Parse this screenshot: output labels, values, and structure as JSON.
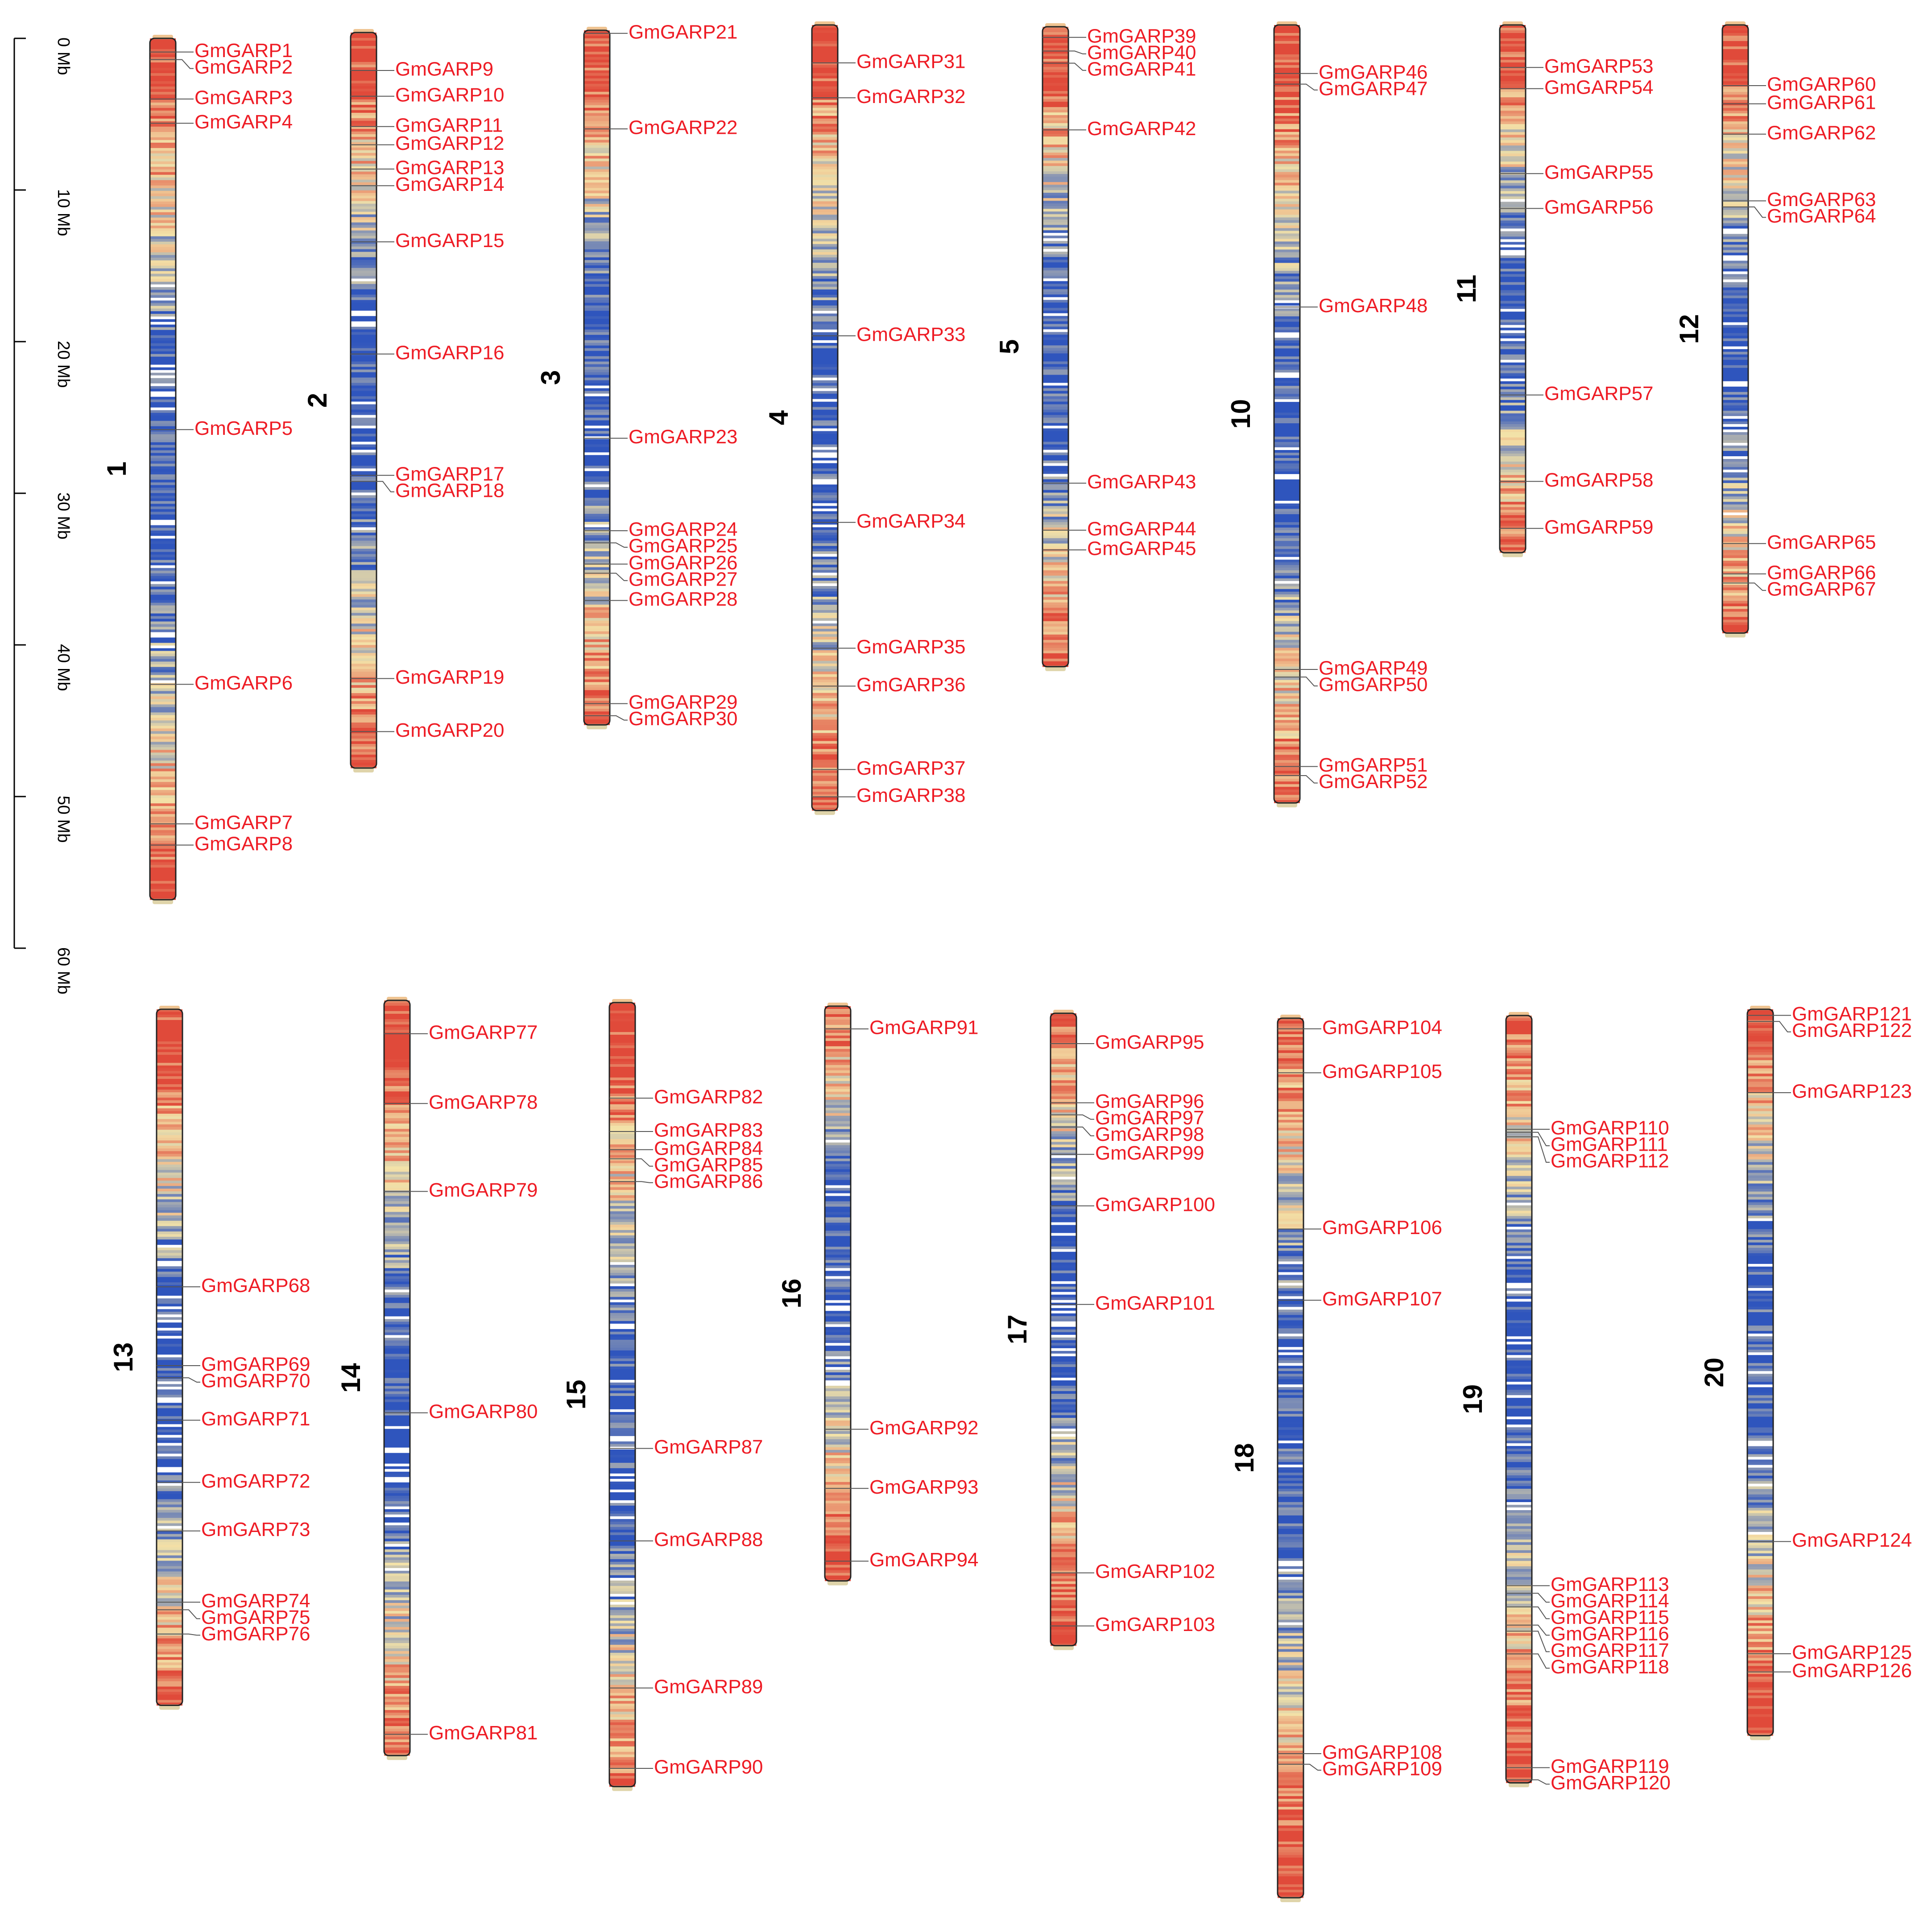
{
  "scale": {
    "unit": "Mb",
    "ticks": [
      "0 Mb",
      "10 Mb",
      "20 Mb",
      "30 Mb",
      "40 Mb",
      "50 Mb",
      "60 Mb"
    ]
  },
  "colors": {
    "gene_label": "#ee1c25",
    "leader": "#555555",
    "chrom_label": "#000000",
    "density_high": "#e04a3a",
    "density_mid": "#f3e2a8",
    "density_low": "#2f55bd"
  },
  "chromosomes": [
    {
      "label": "1",
      "length": 56.8,
      "genes": [
        {
          "name": "GmGARP1",
          "pos": 0.9
        },
        {
          "name": "GmGARP2",
          "pos": 1.4
        },
        {
          "name": "GmGARP3",
          "pos": 4.0
        },
        {
          "name": "GmGARP4",
          "pos": 5.6
        },
        {
          "name": "GmGARP5",
          "pos": 25.8
        },
        {
          "name": "GmGARP6",
          "pos": 42.6
        },
        {
          "name": "GmGARP7",
          "pos": 51.8
        },
        {
          "name": "GmGARP8",
          "pos": 53.2
        }
      ]
    },
    {
      "label": "2",
      "length": 48.5,
      "genes": [
        {
          "name": "GmGARP9",
          "pos": 2.5
        },
        {
          "name": "GmGARP10",
          "pos": 4.2
        },
        {
          "name": "GmGARP11",
          "pos": 6.2
        },
        {
          "name": "GmGARP12",
          "pos": 7.4
        },
        {
          "name": "GmGARP13",
          "pos": 9.0
        },
        {
          "name": "GmGARP14",
          "pos": 10.1
        },
        {
          "name": "GmGARP15",
          "pos": 13.8
        },
        {
          "name": "GmGARP16",
          "pos": 21.2
        },
        {
          "name": "GmGARP17",
          "pos": 29.2
        },
        {
          "name": "GmGARP18",
          "pos": 29.6
        },
        {
          "name": "GmGARP19",
          "pos": 42.6
        },
        {
          "name": "GmGARP20",
          "pos": 46.1
        }
      ]
    },
    {
      "label": "3",
      "length": 45.8,
      "genes": [
        {
          "name": "GmGARP21",
          "pos": 0.2
        },
        {
          "name": "GmGARP22",
          "pos": 6.5
        },
        {
          "name": "GmGARP23",
          "pos": 26.9
        },
        {
          "name": "GmGARP24",
          "pos": 33.0
        },
        {
          "name": "GmGARP25",
          "pos": 33.8
        },
        {
          "name": "GmGARP26",
          "pos": 35.2
        },
        {
          "name": "GmGARP27",
          "pos": 35.8
        },
        {
          "name": "GmGARP28",
          "pos": 37.6
        },
        {
          "name": "GmGARP29",
          "pos": 44.4
        },
        {
          "name": "GmGARP30",
          "pos": 45.2
        }
      ]
    },
    {
      "label": "4",
      "length": 51.8,
      "genes": [
        {
          "name": "GmGARP31",
          "pos": 2.5
        },
        {
          "name": "GmGARP32",
          "pos": 4.8
        },
        {
          "name": "GmGARP33",
          "pos": 20.5
        },
        {
          "name": "GmGARP34",
          "pos": 32.8
        },
        {
          "name": "GmGARP35",
          "pos": 41.1
        },
        {
          "name": "GmGARP36",
          "pos": 43.6
        },
        {
          "name": "GmGARP37",
          "pos": 49.1
        },
        {
          "name": "GmGARP38",
          "pos": 50.9
        }
      ]
    },
    {
      "label": "5",
      "length": 42.2,
      "genes": [
        {
          "name": "GmGARP39",
          "pos": 0.7
        },
        {
          "name": "GmGARP40",
          "pos": 1.6
        },
        {
          "name": "GmGARP41",
          "pos": 2.4
        },
        {
          "name": "GmGARP42",
          "pos": 6.8
        },
        {
          "name": "GmGARP43",
          "pos": 30.1
        },
        {
          "name": "GmGARP44",
          "pos": 33.2
        },
        {
          "name": "GmGARP45",
          "pos": 34.5
        }
      ]
    },
    {
      "label": "10",
      "length": 51.3,
      "genes": [
        {
          "name": "GmGARP46",
          "pos": 3.2
        },
        {
          "name": "GmGARP47",
          "pos": 3.9
        },
        {
          "name": "GmGARP48",
          "pos": 18.6
        },
        {
          "name": "GmGARP49",
          "pos": 42.5
        },
        {
          "name": "GmGARP50",
          "pos": 43.0
        },
        {
          "name": "GmGARP51",
          "pos": 48.9
        },
        {
          "name": "GmGARP52",
          "pos": 49.5
        }
      ]
    },
    {
      "label": "11",
      "length": 34.8,
      "genes": [
        {
          "name": "GmGARP53",
          "pos": 2.8
        },
        {
          "name": "GmGARP54",
          "pos": 4.2
        },
        {
          "name": "GmGARP55",
          "pos": 9.8
        },
        {
          "name": "GmGARP56",
          "pos": 12.1
        },
        {
          "name": "GmGARP57",
          "pos": 24.4
        },
        {
          "name": "GmGARP58",
          "pos": 30.1
        },
        {
          "name": "GmGARP59",
          "pos": 33.2
        }
      ]
    },
    {
      "label": "12",
      "length": 40.1,
      "genes": [
        {
          "name": "GmGARP60",
          "pos": 4.0
        },
        {
          "name": "GmGARP61",
          "pos": 5.2
        },
        {
          "name": "GmGARP62",
          "pos": 7.2
        },
        {
          "name": "GmGARP63",
          "pos": 11.6
        },
        {
          "name": "GmGARP64",
          "pos": 12.0
        },
        {
          "name": "GmGARP65",
          "pos": 34.2
        },
        {
          "name": "GmGARP66",
          "pos": 36.2
        },
        {
          "name": "GmGARP67",
          "pos": 36.8
        }
      ]
    },
    {
      "label": "13",
      "length": 45.9,
      "genes": [
        {
          "name": "GmGARP68",
          "pos": 18.3
        },
        {
          "name": "GmGARP69",
          "pos": 23.5
        },
        {
          "name": "GmGARP70",
          "pos": 24.3
        },
        {
          "name": "GmGARP71",
          "pos": 27.1
        },
        {
          "name": "GmGARP72",
          "pos": 31.2
        },
        {
          "name": "GmGARP73",
          "pos": 34.4
        },
        {
          "name": "GmGARP74",
          "pos": 39.1
        },
        {
          "name": "GmGARP75",
          "pos": 39.6
        },
        {
          "name": "GmGARP76",
          "pos": 41.2
        }
      ]
    },
    {
      "label": "14",
      "length": 49.8,
      "genes": [
        {
          "name": "GmGARP77",
          "pos": 2.2
        },
        {
          "name": "GmGARP78",
          "pos": 6.8
        },
        {
          "name": "GmGARP79",
          "pos": 12.6
        },
        {
          "name": "GmGARP80",
          "pos": 27.2
        },
        {
          "name": "GmGARP81",
          "pos": 48.4
        }
      ]
    },
    {
      "label": "15",
      "length": 51.7,
      "genes": [
        {
          "name": "GmGARP82",
          "pos": 6.3
        },
        {
          "name": "GmGARP83",
          "pos": 8.5
        },
        {
          "name": "GmGARP84",
          "pos": 9.7
        },
        {
          "name": "GmGARP85",
          "pos": 10.3
        },
        {
          "name": "GmGARP86",
          "pos": 11.8
        },
        {
          "name": "GmGARP87",
          "pos": 29.4
        },
        {
          "name": "GmGARP88",
          "pos": 35.5
        },
        {
          "name": "GmGARP89",
          "pos": 45.2
        },
        {
          "name": "GmGARP90",
          "pos": 50.5
        }
      ]
    },
    {
      "label": "16",
      "length": 37.9,
      "genes": [
        {
          "name": "GmGARP91",
          "pos": 1.5
        },
        {
          "name": "GmGARP92",
          "pos": 27.9
        },
        {
          "name": "GmGARP93",
          "pos": 31.8
        },
        {
          "name": "GmGARP94",
          "pos": 36.6
        }
      ]
    },
    {
      "label": "17",
      "length": 41.7,
      "genes": [
        {
          "name": "GmGARP95",
          "pos": 2.0
        },
        {
          "name": "GmGARP96",
          "pos": 5.9
        },
        {
          "name": "GmGARP97",
          "pos": 6.7
        },
        {
          "name": "GmGARP98",
          "pos": 7.5
        },
        {
          "name": "GmGARP99",
          "pos": 9.3
        },
        {
          "name": "GmGARP100",
          "pos": 12.7
        },
        {
          "name": "GmGARP101",
          "pos": 19.2
        },
        {
          "name": "GmGARP102",
          "pos": 36.9
        },
        {
          "name": "GmGARP103",
          "pos": 40.4
        }
      ]
    },
    {
      "label": "18",
      "length": 58.0,
      "genes": [
        {
          "name": "GmGARP104",
          "pos": 0.7
        },
        {
          "name": "GmGARP105",
          "pos": 3.6
        },
        {
          "name": "GmGARP106",
          "pos": 13.9
        },
        {
          "name": "GmGARP107",
          "pos": 18.6
        },
        {
          "name": "GmGARP108",
          "pos": 48.5
        },
        {
          "name": "GmGARP109",
          "pos": 49.2
        }
      ]
    },
    {
      "label": "19",
      "length": 50.6,
      "genes": [
        {
          "name": "GmGARP110",
          "pos": 7.5
        },
        {
          "name": "GmGARP111",
          "pos": 7.7
        },
        {
          "name": "GmGARP112",
          "pos": 8.0
        },
        {
          "name": "GmGARP113",
          "pos": 37.6
        },
        {
          "name": "GmGARP114",
          "pos": 38.1
        },
        {
          "name": "GmGARP115",
          "pos": 39.0
        },
        {
          "name": "GmGARP116",
          "pos": 40.2
        },
        {
          "name": "GmGARP117",
          "pos": 40.6
        },
        {
          "name": "GmGARP118",
          "pos": 42.1
        },
        {
          "name": "GmGARP119",
          "pos": 49.6
        },
        {
          "name": "GmGARP120",
          "pos": 50.4
        }
      ]
    },
    {
      "label": "20",
      "length": 47.9,
      "genes": [
        {
          "name": "GmGARP121",
          "pos": 0.4
        },
        {
          "name": "GmGARP122",
          "pos": 0.8
        },
        {
          "name": "GmGARP123",
          "pos": 5.5
        },
        {
          "name": "GmGARP124",
          "pos": 35.1
        },
        {
          "name": "GmGARP125",
          "pos": 42.5
        },
        {
          "name": "GmGARP126",
          "pos": 43.7
        }
      ]
    }
  ]
}
